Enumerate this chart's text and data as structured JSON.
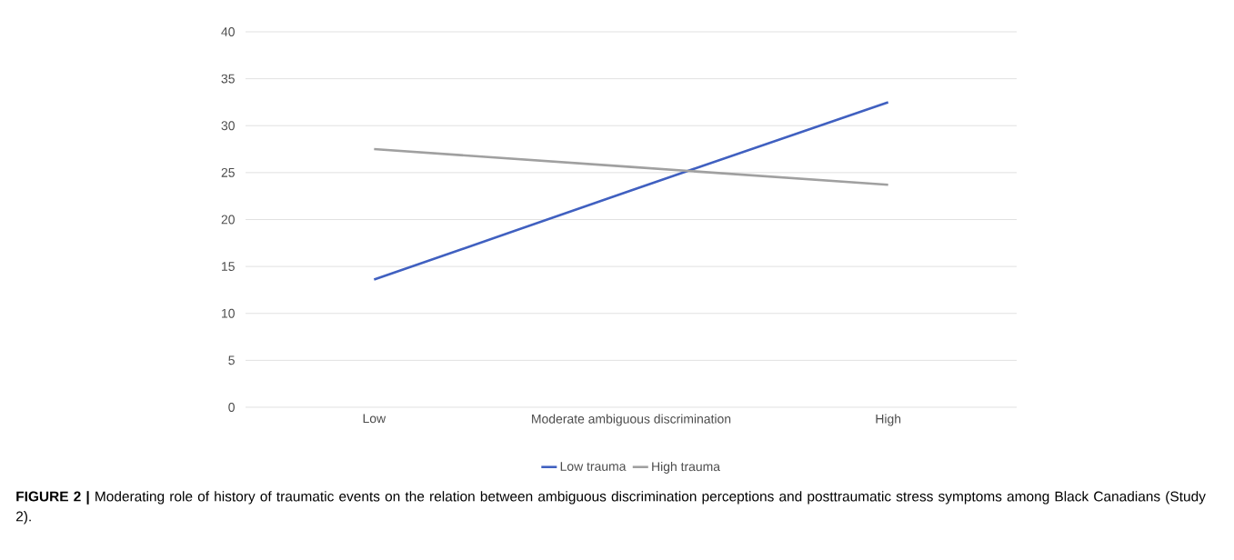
{
  "chart_data": {
    "type": "line",
    "categories": [
      "Low",
      "Moderate ambiguous discrimination",
      "High"
    ],
    "series": [
      {
        "name": "Low trauma",
        "color": "#4060c0",
        "values": [
          13.6,
          23.1,
          32.5
        ]
      },
      {
        "name": "High trauma",
        "color": "#a0a0a0",
        "values": [
          27.5,
          25.6,
          23.7
        ]
      }
    ],
    "ylim": [
      0,
      40
    ],
    "yticks": [
      0,
      5,
      10,
      15,
      20,
      25,
      30,
      35,
      40
    ],
    "grid": "y",
    "legend": "bottom",
    "marker": "none",
    "line_style": "solid",
    "annotations": [
      "**FIGURE 2 |** Moderating role of history of traumatic events on the relation between ambiguous discrimination perceptions and posttraumatic stress symptoms among Black Canadians (Study 2)."
    ]
  }
}
